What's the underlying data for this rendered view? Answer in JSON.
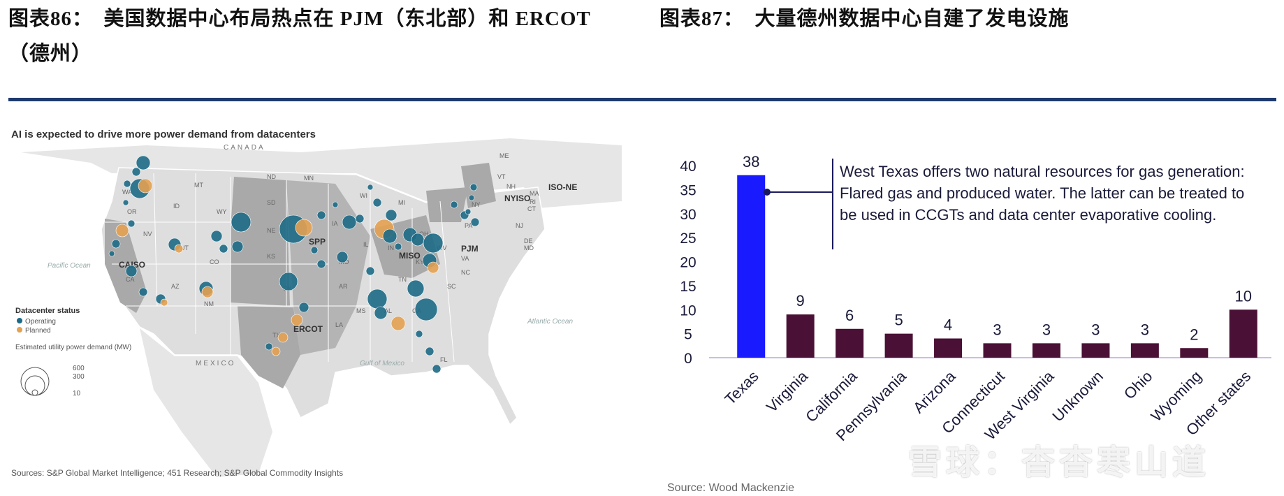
{
  "figures": {
    "left_title": "图表86：　美国数据中心布局热点在 PJM（东北部）和 ERCOT（德州）",
    "right_title": "图表87：　大量德州数据中心自建了发电设施"
  },
  "map": {
    "title": "AI is expected to drive more power demand from datacenters",
    "source": "Sources: S&P Global Market Intelligence; 451 Research; S&P Global Commodity Insights",
    "labels": {
      "canada": "CANADA",
      "mexico": "MEXICO",
      "pacific": "Pacific Ocean",
      "atlantic": "Atlantic Ocean",
      "gulf": "Gulf of Mexico",
      "caiso": "CAISO",
      "spp": "SPP",
      "miso": "MISO",
      "pjm": "PJM",
      "nyiso": "NYISO",
      "isone": "ISO-NE",
      "ercot": "ERCOT"
    },
    "states": [
      "WA",
      "OR",
      "CA",
      "NV",
      "ID",
      "MT",
      "WY",
      "UT",
      "CO",
      "AZ",
      "NM",
      "ND",
      "SD",
      "NE",
      "KS",
      "OK",
      "TX",
      "MN",
      "IA",
      "MO",
      "AR",
      "LA",
      "WI",
      "IL",
      "MI",
      "IN",
      "OH",
      "KY",
      "TN",
      "MS",
      "AL",
      "GA",
      "FL",
      "SC",
      "NC",
      "VA",
      "WV",
      "PA",
      "NY",
      "VT",
      "NH",
      "ME",
      "MA",
      "RI",
      "CT",
      "NJ",
      "DE",
      "MD"
    ],
    "legend": {
      "title": "Datacenter status",
      "operating": "Operating",
      "planned": "Planned",
      "size_title": "Estimated utility power demand (MW)",
      "sizes": [
        "600",
        "300",
        "10"
      ]
    },
    "colors": {
      "operating": "#1d6a86",
      "planned": "#e3a152",
      "land": "#dedede",
      "iso": "#a9a9a9"
    }
  },
  "chart_data": {
    "type": "bar",
    "categories": [
      "Texas",
      "Virginia",
      "California",
      "Pennsylvania",
      "Arizona",
      "Connecticut",
      "West Virginia",
      "Unknown",
      "Ohio",
      "Wyoming",
      "Other states"
    ],
    "values": [
      38,
      9,
      6,
      5,
      4,
      3,
      3,
      3,
      3,
      2,
      10
    ],
    "ylim": [
      0,
      40
    ],
    "yticks": [
      "0",
      "5",
      "10",
      "15",
      "20",
      "25",
      "30",
      "35",
      "40"
    ],
    "highlight_color": "#1a1aff",
    "bar_color": "#4a1035",
    "annotation": "West Texas offers two natural resources for gas generation: Flared gas and produced water. The latter can be treated to be used in CCGTs and data center evaporative cooling.",
    "source": "Source: Wood Mackenzie",
    "grid": false,
    "legend": "none"
  },
  "watermark": "雪球：杳杳寒山道"
}
